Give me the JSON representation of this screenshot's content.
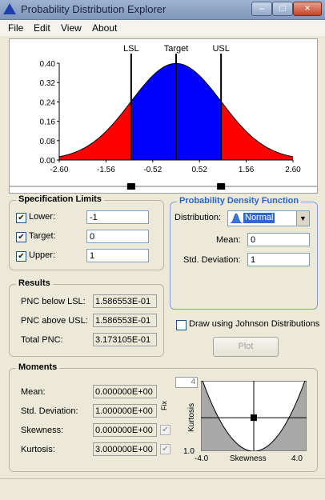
{
  "window": {
    "title": "Probability Distribution Explorer",
    "minimize_glyph": "–",
    "maximize_glyph": "□",
    "close_glyph": "×"
  },
  "menu": {
    "file": "File",
    "edit": "Edit",
    "view": "View",
    "about": "About"
  },
  "plot": {
    "markers": {
      "lsl": "LSL",
      "target": "Target",
      "usl": "USL"
    },
    "lsl_value": -1,
    "target_value": 0,
    "usl_value": 1,
    "xlim": [
      -2.6,
      2.6
    ],
    "ylim": [
      0,
      0.4
    ],
    "x_ticks": [
      "-2.60",
      "-1.56",
      "-0.52",
      "0.52",
      "1.56",
      "2.60"
    ],
    "y_ticks": [
      "0.40",
      "0.32",
      "0.24",
      "0.16",
      "0.08",
      "0.00"
    ],
    "colors": {
      "inside": "#0000ff",
      "outside": "#ff0000"
    }
  },
  "spec_limits": {
    "title": "Specification Limits",
    "check_glyph": "✔",
    "lower": {
      "label": "Lower:",
      "checked": true,
      "value": "-1"
    },
    "target": {
      "label": "Target:",
      "checked": true,
      "value": "0"
    },
    "upper": {
      "label": "Upper:",
      "checked": true,
      "value": "1"
    }
  },
  "pdf": {
    "title": "Probability Density Function",
    "distribution_label": "Distribution:",
    "distribution_value": "Normal",
    "dropdown_glyph": "▼",
    "mean_label": "Mean:",
    "mean_value": "0",
    "sd_label": "Std. Deviation:",
    "sd_value": "1"
  },
  "results": {
    "title": "Results",
    "below_label": "PNC below LSL:",
    "below_value": "1.586553E-01",
    "above_label": "PNC above USL:",
    "above_value": "1.586553E-01",
    "total_label": "Total PNC:",
    "total_value": "3.173105E-01"
  },
  "johnson": {
    "label": "Draw using Johnson Distributions",
    "checked": false
  },
  "plot_button": "Plot",
  "moments": {
    "title": "Moments",
    "mean_label": "Mean:",
    "mean_value": "0.000000E+00",
    "sd_label": "Std. Deviation:",
    "sd_value": "1.000000E+00",
    "skew_label": "Skewness:",
    "skew_value": "0.000000E+00",
    "kurt_label": "Kurtosis:",
    "kurt_value": "3.000000E+00",
    "fix_label": "Fix",
    "fix_glyph": "✔"
  },
  "moment_chart": {
    "kurtosis_max": "4",
    "kurtosis_min": "1.0",
    "ylabel": "Kurtosis",
    "xlabel": "Skewness",
    "xmin": "-4.0",
    "xmax": "4.0",
    "point": {
      "skewness": 0,
      "kurtosis": 3
    }
  }
}
